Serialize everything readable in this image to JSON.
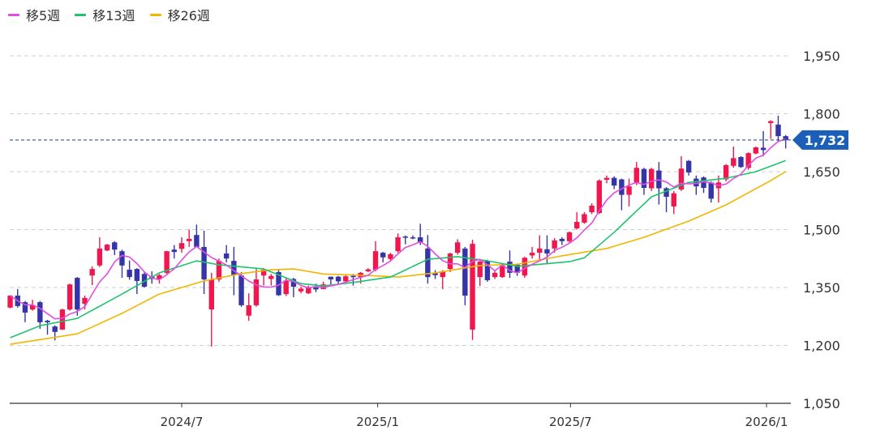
{
  "chart_data": {
    "type": "candlestick",
    "legend": [
      {
        "name": "移5週",
        "color": "#e04fe0"
      },
      {
        "name": "移13週",
        "color": "#1ec46b"
      },
      {
        "name": "移26週",
        "color": "#f2b600"
      }
    ],
    "legend_position": "top-left",
    "up_color": "#f0174f",
    "down_color": "#3535a8",
    "current_price": 1732,
    "current_price_label": "1,732",
    "current_price_color": "#1c5fb8",
    "ylim": [
      1050,
      2000
    ],
    "y_ticks": [
      {
        "value": 1050,
        "label": "1,050"
      },
      {
        "value": 1200,
        "label": "1,200"
      },
      {
        "value": 1350,
        "label": "1,350"
      },
      {
        "value": 1500,
        "label": "1,500"
      },
      {
        "value": 1650,
        "label": "1,650"
      },
      {
        "value": 1800,
        "label": "1,800"
      },
      {
        "value": 1950,
        "label": "1,950"
      }
    ],
    "x_ticks": [
      {
        "date": "2024-07-01",
        "label": "2024/7"
      },
      {
        "date": "2025-01-01",
        "label": "2025/1"
      },
      {
        "date": "2025-07-01",
        "label": "2025/7"
      },
      {
        "date": "2026-01-01",
        "label": "2026/1"
      }
    ],
    "grid": true,
    "candles_fields": [
      "date",
      "open",
      "high",
      "low",
      "close"
    ],
    "candles": [
      [
        "2024-01-22",
        1298,
        1330,
        1296,
        1329
      ],
      [
        "2024-01-29",
        1329,
        1346,
        1298,
        1302
      ],
      [
        "2024-02-05",
        1312,
        1315,
        1260,
        1285
      ],
      [
        "2024-02-12",
        1293,
        1318,
        1290,
        1304
      ],
      [
        "2024-02-19",
        1312,
        1315,
        1243,
        1260
      ],
      [
        "2024-02-26",
        1264,
        1266,
        1228,
        1260
      ],
      [
        "2024-03-04",
        1249,
        1252,
        1213,
        1235
      ],
      [
        "2024-03-11",
        1241,
        1295,
        1240,
        1293
      ],
      [
        "2024-03-18",
        1293,
        1360,
        1290,
        1358
      ],
      [
        "2024-03-25",
        1375,
        1377,
        1277,
        1293
      ],
      [
        "2024-04-01",
        1308,
        1329,
        1293,
        1323
      ],
      [
        "2024-04-08",
        1381,
        1405,
        1356,
        1398
      ],
      [
        "2024-04-15",
        1407,
        1480,
        1403,
        1451
      ],
      [
        "2024-04-22",
        1446,
        1463,
        1444,
        1461
      ],
      [
        "2024-04-29",
        1467,
        1470,
        1434,
        1448
      ],
      [
        "2024-05-06",
        1444,
        1448,
        1375,
        1407
      ],
      [
        "2024-05-13",
        1396,
        1420,
        1370,
        1377
      ],
      [
        "2024-05-20",
        1398,
        1400,
        1333,
        1367
      ],
      [
        "2024-05-27",
        1385,
        1390,
        1350,
        1352
      ],
      [
        "2024-06-03",
        1378,
        1392,
        1360,
        1372
      ],
      [
        "2024-06-10",
        1372,
        1385,
        1360,
        1382
      ],
      [
        "2024-06-17",
        1388,
        1445,
        1385,
        1444
      ],
      [
        "2024-06-24",
        1448,
        1460,
        1425,
        1442
      ],
      [
        "2024-07-01",
        1450,
        1480,
        1440,
        1465
      ],
      [
        "2024-07-08",
        1470,
        1500,
        1455,
        1476
      ],
      [
        "2024-07-15",
        1486,
        1513,
        1455,
        1455
      ],
      [
        "2024-07-22",
        1455,
        1497,
        1333,
        1371
      ],
      [
        "2024-07-29",
        1293,
        1388,
        1197,
        1371
      ],
      [
        "2024-08-05",
        1371,
        1425,
        1365,
        1419
      ],
      [
        "2024-08-12",
        1438,
        1460,
        1415,
        1425
      ],
      [
        "2024-08-19",
        1419,
        1455,
        1330,
        1382
      ],
      [
        "2024-08-26",
        1381,
        1390,
        1300,
        1304
      ],
      [
        "2024-09-02",
        1277,
        1335,
        1264,
        1304
      ],
      [
        "2024-09-09",
        1304,
        1398,
        1300,
        1371
      ],
      [
        "2024-09-16",
        1381,
        1400,
        1355,
        1396
      ],
      [
        "2024-09-23",
        1372,
        1385,
        1355,
        1380
      ],
      [
        "2024-09-30",
        1390,
        1395,
        1328,
        1330
      ],
      [
        "2024-10-07",
        1333,
        1375,
        1328,
        1368
      ],
      [
        "2024-10-14",
        1372,
        1375,
        1325,
        1352
      ],
      [
        "2024-10-21",
        1340,
        1352,
        1335,
        1347
      ],
      [
        "2024-10-28",
        1335,
        1355,
        1333,
        1350
      ],
      [
        "2024-11-04",
        1350,
        1360,
        1338,
        1345
      ],
      [
        "2024-11-11",
        1346,
        1365,
        1345,
        1358
      ],
      [
        "2024-11-18",
        1378,
        1378,
        1358,
        1371
      ],
      [
        "2024-11-25",
        1378,
        1380,
        1360,
        1366
      ],
      [
        "2024-12-02",
        1366,
        1382,
        1362,
        1379
      ],
      [
        "2024-12-09",
        1380,
        1385,
        1355,
        1377
      ],
      [
        "2024-12-16",
        1377,
        1390,
        1360,
        1388
      ],
      [
        "2024-12-23",
        1392,
        1400,
        1390,
        1397
      ],
      [
        "2024-12-30",
        1396,
        1470,
        1392,
        1444
      ],
      [
        "2025-01-06",
        1440,
        1442,
        1415,
        1428
      ],
      [
        "2025-01-13",
        1424,
        1440,
        1420,
        1436
      ],
      [
        "2025-01-20",
        1444,
        1490,
        1440,
        1480
      ],
      [
        "2025-01-27",
        1482,
        1485,
        1462,
        1480
      ],
      [
        "2025-02-03",
        1480,
        1485,
        1475,
        1479
      ],
      [
        "2025-02-10",
        1480,
        1515,
        1460,
        1467
      ],
      [
        "2025-02-17",
        1451,
        1486,
        1360,
        1377
      ],
      [
        "2025-02-24",
        1387,
        1395,
        1372,
        1382
      ],
      [
        "2025-03-03",
        1377,
        1395,
        1346,
        1392
      ],
      [
        "2025-03-10",
        1398,
        1440,
        1390,
        1438
      ],
      [
        "2025-03-17",
        1440,
        1475,
        1435,
        1467
      ],
      [
        "2025-03-24",
        1451,
        1455,
        1304,
        1329
      ],
      [
        "2025-03-31",
        1241,
        1474,
        1214,
        1463
      ],
      [
        "2025-04-07",
        1377,
        1420,
        1354,
        1417
      ],
      [
        "2025-04-14",
        1419,
        1422,
        1365,
        1369
      ],
      [
        "2025-04-21",
        1377,
        1392,
        1372,
        1388
      ],
      [
        "2025-04-28",
        1377,
        1410,
        1375,
        1407
      ],
      [
        "2025-05-05",
        1417,
        1446,
        1375,
        1388
      ],
      [
        "2025-05-12",
        1409,
        1412,
        1380,
        1388
      ],
      [
        "2025-05-19",
        1381,
        1430,
        1375,
        1427
      ],
      [
        "2025-05-26",
        1433,
        1455,
        1425,
        1440
      ],
      [
        "2025-06-02",
        1440,
        1485,
        1420,
        1451
      ],
      [
        "2025-06-09",
        1449,
        1485,
        1410,
        1438
      ],
      [
        "2025-06-16",
        1451,
        1478,
        1440,
        1472
      ],
      [
        "2025-06-23",
        1476,
        1480,
        1460,
        1470
      ],
      [
        "2025-06-30",
        1470,
        1495,
        1465,
        1493
      ],
      [
        "2025-07-07",
        1503,
        1545,
        1500,
        1520
      ],
      [
        "2025-07-14",
        1518,
        1545,
        1515,
        1540
      ],
      [
        "2025-07-21",
        1545,
        1568,
        1540,
        1562
      ],
      [
        "2025-07-28",
        1543,
        1630,
        1540,
        1627
      ],
      [
        "2025-08-04",
        1629,
        1640,
        1620,
        1634
      ],
      [
        "2025-08-11",
        1634,
        1638,
        1605,
        1614
      ],
      [
        "2025-08-18",
        1630,
        1632,
        1550,
        1590
      ],
      [
        "2025-08-25",
        1590,
        1632,
        1560,
        1612
      ],
      [
        "2025-09-01",
        1622,
        1675,
        1615,
        1660
      ],
      [
        "2025-09-08",
        1657,
        1660,
        1590,
        1608
      ],
      [
        "2025-09-15",
        1607,
        1660,
        1600,
        1657
      ],
      [
        "2025-09-22",
        1653,
        1675,
        1565,
        1607
      ],
      [
        "2025-09-29",
        1607,
        1610,
        1545,
        1585
      ],
      [
        "2025-10-06",
        1560,
        1600,
        1540,
        1594
      ],
      [
        "2025-10-13",
        1604,
        1690,
        1600,
        1658
      ],
      [
        "2025-10-20",
        1678,
        1680,
        1640,
        1648
      ],
      [
        "2025-10-27",
        1632,
        1640,
        1590,
        1612
      ],
      [
        "2025-11-03",
        1635,
        1638,
        1595,
        1608
      ],
      [
        "2025-11-10",
        1622,
        1625,
        1570,
        1580
      ],
      [
        "2025-11-17",
        1607,
        1640,
        1570,
        1622
      ],
      [
        "2025-11-24",
        1630,
        1670,
        1625,
        1667
      ],
      [
        "2025-12-01",
        1665,
        1715,
        1660,
        1685
      ],
      [
        "2025-12-08",
        1688,
        1690,
        1660,
        1662
      ],
      [
        "2025-12-15",
        1660,
        1700,
        1655,
        1698
      ],
      [
        "2025-12-22",
        1697,
        1715,
        1695,
        1713
      ],
      [
        "2025-12-29",
        1712,
        1755,
        1690,
        1706
      ],
      [
        "2026-01-05",
        1776,
        1783,
        1735,
        1781
      ],
      [
        "2026-01-12",
        1772,
        1795,
        1730,
        1742
      ],
      [
        "2026-01-19",
        1742,
        1745,
        1710,
        1732
      ]
    ],
    "ma13": [
      [
        "2024-01-22",
        1220
      ],
      [
        "2024-02-19",
        1251
      ],
      [
        "2024-03-25",
        1270
      ],
      [
        "2024-05-06",
        1333
      ],
      [
        "2024-06-10",
        1388
      ],
      [
        "2024-07-15",
        1419
      ],
      [
        "2024-08-05",
        1409
      ],
      [
        "2024-09-16",
        1398
      ],
      [
        "2024-10-21",
        1360
      ],
      [
        "2024-11-11",
        1354
      ],
      [
        "2024-12-09",
        1363
      ],
      [
        "2025-01-13",
        1377
      ],
      [
        "2025-02-17",
        1423
      ],
      [
        "2025-03-17",
        1430
      ],
      [
        "2025-04-14",
        1419
      ],
      [
        "2025-05-12",
        1405
      ],
      [
        "2025-06-30",
        1417
      ],
      [
        "2025-07-14",
        1427
      ],
      [
        "2025-08-11",
        1493
      ],
      [
        "2025-09-15",
        1585
      ],
      [
        "2025-10-20",
        1622
      ],
      [
        "2025-11-24",
        1633
      ],
      [
        "2025-12-22",
        1650
      ],
      [
        "2026-01-19",
        1679
      ]
    ],
    "ma26": [
      [
        "2024-01-22",
        1203
      ],
      [
        "2024-02-26",
        1218
      ],
      [
        "2024-03-25",
        1230
      ],
      [
        "2024-05-06",
        1283
      ],
      [
        "2024-06-10",
        1333
      ],
      [
        "2024-07-22",
        1367
      ],
      [
        "2024-08-26",
        1386
      ],
      [
        "2024-09-23",
        1396
      ],
      [
        "2024-10-14",
        1398
      ],
      [
        "2024-11-11",
        1385
      ],
      [
        "2024-12-23",
        1381
      ],
      [
        "2025-01-20",
        1377
      ],
      [
        "2025-02-24",
        1388
      ],
      [
        "2025-04-07",
        1407
      ],
      [
        "2025-05-12",
        1410
      ],
      [
        "2025-06-23",
        1432
      ],
      [
        "2025-08-04",
        1451
      ],
      [
        "2025-09-08",
        1480
      ],
      [
        "2025-10-20",
        1522
      ],
      [
        "2025-11-24",
        1564
      ],
      [
        "2026-01-05",
        1627
      ],
      [
        "2026-01-19",
        1650
      ]
    ]
  }
}
